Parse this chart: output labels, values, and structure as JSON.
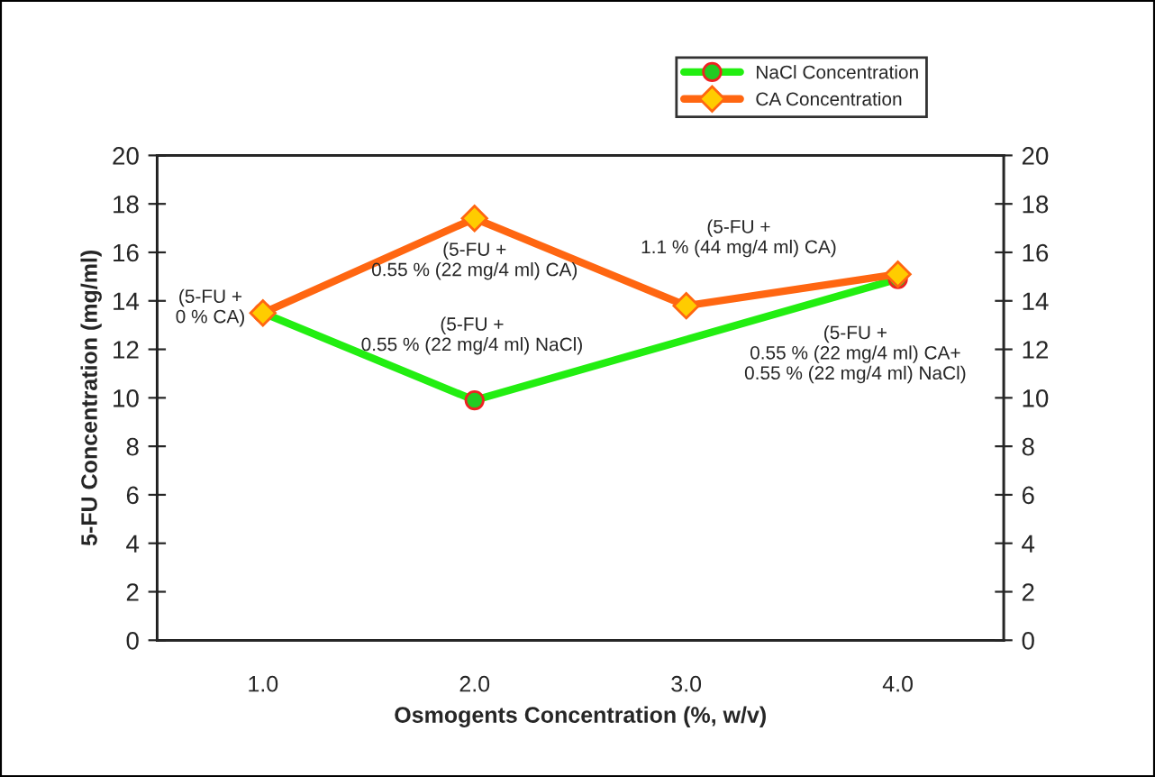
{
  "chart_data": {
    "type": "line",
    "xlabel": "Osmogents Concentration (%, w/v)",
    "ylabel": "5-FU Concentration (mg/ml)",
    "categories": [
      "1.0",
      "2.0",
      "3.0",
      "4.0"
    ],
    "series": [
      {
        "name": "NaCl Concentration",
        "color": "#22ee11",
        "marker": "circle",
        "values": [
          13.5,
          9.9,
          null,
          14.9
        ]
      },
      {
        "name": "CA Concentration",
        "color": "#ff6611",
        "marker": "diamond",
        "values": [
          13.5,
          17.4,
          13.8,
          15.1
        ]
      }
    ],
    "ylim": [
      0,
      20
    ],
    "yticks": [
      0,
      2,
      4,
      6,
      8,
      10,
      12,
      14,
      16,
      18,
      20
    ],
    "y2lim": [
      0,
      20
    ],
    "y2ticks": [
      0,
      2,
      4,
      6,
      8,
      10,
      12,
      14,
      16,
      18,
      20
    ],
    "grid": false,
    "legend": "top right",
    "annotations": [
      {
        "text": "(5-FU +\n0 % CA)",
        "x": "1.0",
        "y": 13.5
      },
      {
        "text": "(5-FU +\n0.55 % (22 mg/4 ml) CA)",
        "x": "2.0",
        "y": 17.4
      },
      "(5-FU +\n0.55 % (22 mg/4 ml) NaCl)",
      "(5-FU +\n1.1 % (44 mg/4 ml) CA)",
      {
        "text": "(5-FU +\n0.55 % (22 mg/4 ml) CA+\n0.55 % (22 mg/4 ml) NaCl)",
        "x": "4.0",
        "y": 15.1
      }
    ]
  }
}
